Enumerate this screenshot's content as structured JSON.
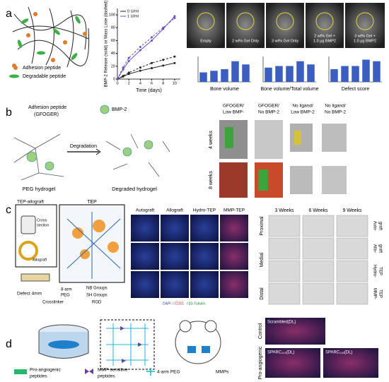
{
  "chart_data": [
    {
      "type": "line",
      "ylabel": "BMP-2 Release (solid) or Mass Lose (dashed)",
      "xlabel": "Time (days)",
      "x": [
        0,
        1,
        2,
        4,
        6,
        8,
        10
      ],
      "xlim": [
        0,
        11
      ],
      "ylim": [
        0,
        110
      ],
      "xticks": [
        0,
        2,
        4,
        6,
        8,
        10
      ],
      "yticks": [
        0,
        20,
        40,
        60,
        80,
        100
      ],
      "series": [
        {
          "name": "0 U/ml",
          "color": "#222222",
          "values": [
            0,
            4,
            8,
            13,
            17,
            21,
            25
          ]
        },
        {
          "name": "1 U/ml",
          "color": "#6a4fc4",
          "values": [
            0,
            15,
            28,
            45,
            60,
            78,
            98
          ]
        },
        {
          "color": "#222222",
          "dashed": true,
          "values": [
            0,
            5,
            10,
            18,
            25,
            30,
            35
          ]
        },
        {
          "color": "#6a4fc4",
          "dashed": true,
          "values": [
            0,
            18,
            33,
            50,
            65,
            80,
            95
          ]
        }
      ]
    },
    {
      "type": "bar",
      "xlabel": "Bone volume",
      "color": "#3b5fc0",
      "ylim": [
        0,
        16
      ],
      "values": [
        6,
        7,
        8,
        13,
        11
      ]
    },
    {
      "type": "bar",
      "xlabel": "Bone volume/Total volume",
      "color": "#3b5fc0",
      "ylim": [
        0,
        16
      ],
      "values": [
        9,
        10,
        10,
        13,
        11
      ]
    },
    {
      "type": "bar",
      "xlabel": "Defect score",
      "color": "#3b5fc0",
      "ylim": [
        0,
        16
      ],
      "values": [
        8,
        10,
        10,
        14,
        13
      ]
    }
  ],
  "figure": {
    "panel_labels": [
      "a",
      "b",
      "c",
      "d"
    ],
    "a": {
      "legend": [
        "Adhesion peptide",
        "Degradable peptide"
      ],
      "images": [
        [
          "Empty"
        ],
        [
          "2 wt% Gel Only"
        ],
        [
          "3 wt% Gel Only"
        ],
        [
          "2 wt% Gel +",
          "1.0 μg BMP2"
        ],
        [
          "3 wt% Gel +",
          "1.0 μg BMP2"
        ]
      ]
    },
    "b": {
      "legend": [
        "Adhesion peptide",
        "(GFOGER)",
        "BMP-2"
      ],
      "arrow": "Degradation",
      "before": "PEG hydrogel",
      "after": "Degraded hydrogel",
      "columns": [
        [
          "GFOGER/",
          "Low BMP-"
        ],
        [
          "GFOGER/",
          "No BMP-2"
        ],
        [
          "No ligand/",
          "Low BMP-2"
        ],
        [
          "No ligand/",
          "No BMP-2"
        ]
      ],
      "rows": [
        "4 weeks",
        "8 weeks"
      ]
    },
    "c": {
      "scheme_title": "TEP-allograft",
      "cross_section": [
        "Cross",
        "section"
      ],
      "allograft": "Allograft",
      "tep": "TEP",
      "defect": "Defect 4mm",
      "arm": [
        "8-arm",
        "PEG"
      ],
      "nb": "NB Groups",
      "sh": "SH Groups",
      "crosslinker": "Crosslinker",
      "rgd": "RGD",
      "stain_columns": [
        "Autograft",
        "Allograft",
        "Hydro-TEP",
        "MMP-TEP"
      ],
      "stain_legend": [
        "DAPI",
        "/ CD31",
        "/ β3-Tubulin"
      ],
      "ct_columns": [
        "3 Weeks",
        "6 Weeks",
        "9 Weeks"
      ],
      "ct_rows": [
        "Proximal",
        "Medial",
        "Distal"
      ],
      "ct_groups": [
        [
          "Auto-",
          "graft"
        ],
        [
          "Allo-",
          "graft"
        ],
        [
          "Hydro-",
          "TEP"
        ],
        [
          "MMP-",
          "TEP"
        ]
      ]
    },
    "d": {
      "legend": [
        [
          "Pro-angiogenic",
          "peptides"
        ],
        [
          "MMP-sensitive",
          "peptides"
        ],
        [
          "4-arm PEG"
        ],
        [
          "MMPs"
        ]
      ],
      "rows": [
        "Control",
        "Pro-angiogenic"
      ],
      "images": [
        "Scrambled(DL)",
        "SPARC₁₁₃(DL)",
        "SPARC₁₁₈(DL)"
      ]
    }
  }
}
